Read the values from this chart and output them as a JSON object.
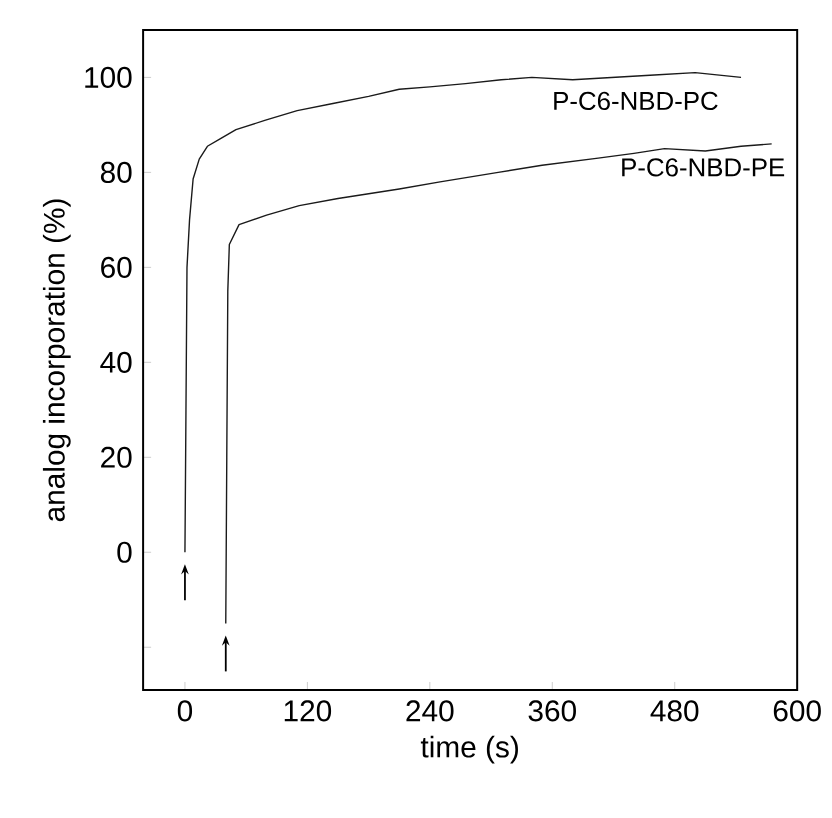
{
  "chart_data": {
    "type": "line",
    "xlabel": "time (s)",
    "ylabel": "analog incorporation (%)",
    "xlim": [
      -41,
      600
    ],
    "ylim": [
      -29,
      110
    ],
    "xticks": [
      0,
      120,
      240,
      360,
      480,
      600
    ],
    "yticks": [
      {
        "value": -20,
        "label": null
      },
      0,
      20,
      40,
      60,
      80,
      100
    ],
    "marker": "none",
    "line_style": "solid",
    "grid": false,
    "legend": false,
    "series": [
      {
        "name": "P-C6-NBD-PC",
        "color": "#1a1a1a",
        "x": [
          0,
          1,
          2,
          4.5,
          8,
          14,
          22,
          34,
          50,
          79,
          110,
          145,
          180,
          210,
          240,
          275,
          310,
          340,
          380,
          420,
          460,
          500,
          545
        ],
        "values": [
          0,
          30,
          60,
          70,
          78.6,
          82.8,
          85.5,
          87,
          89,
          91,
          93,
          94.5,
          96,
          97.5,
          98,
          98.7,
          99.5,
          100,
          99.5,
          100,
          100.5,
          101,
          100
        ]
      },
      {
        "name": "P-C6-NBD-PE",
        "color": "#1a1a1a",
        "x": [
          40,
          41,
          42,
          43.5,
          53,
          80,
          112,
          150,
          180,
          210,
          250,
          307,
          350,
          405,
          440,
          470,
          510,
          545,
          575
        ],
        "values": [
          -15,
          20,
          55,
          64.8,
          69,
          71,
          73,
          74.5,
          75.5,
          76.5,
          78,
          80,
          81.5,
          83,
          84,
          85,
          84.5,
          85.5,
          86
        ]
      }
    ]
  }
}
